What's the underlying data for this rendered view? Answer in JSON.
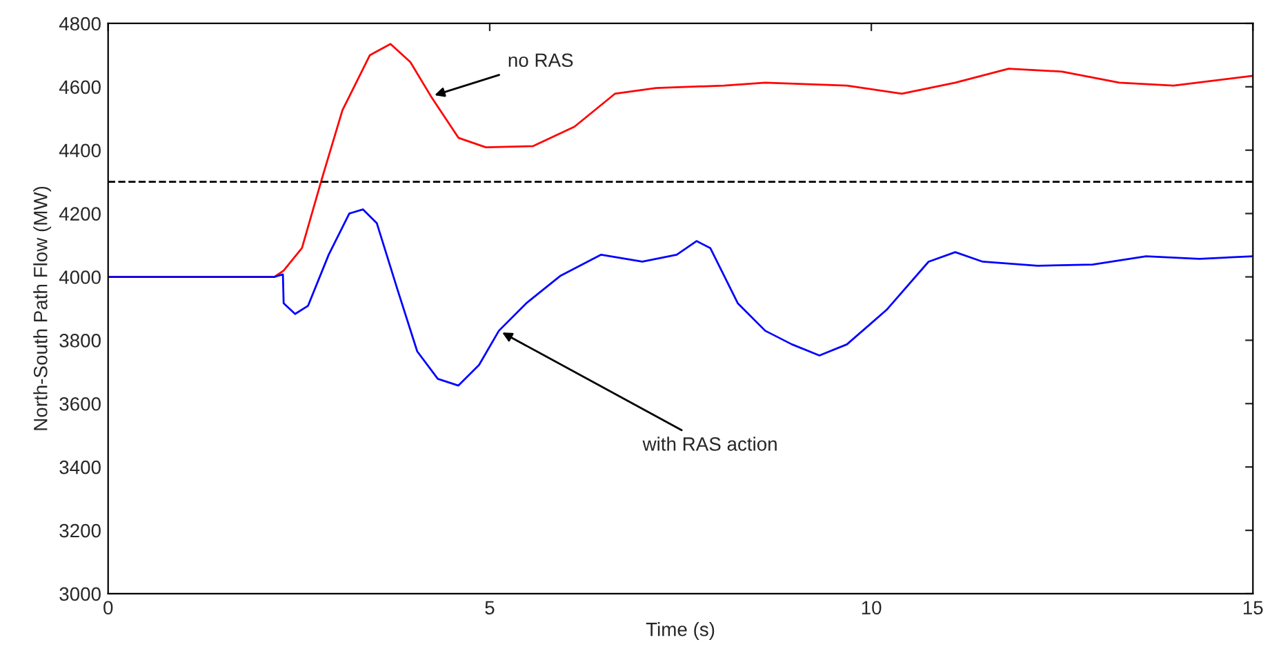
{
  "chart_data": {
    "type": "line",
    "xlabel": "Time (s)",
    "ylabel": "North-South Path Flow (MW)",
    "xlim": [
      0,
      15
    ],
    "xticks": [
      0,
      5,
      10,
      15
    ],
    "ylim": [
      3000,
      4800
    ],
    "yticks": [
      3000,
      3200,
      3400,
      3600,
      3800,
      4000,
      4200,
      4400,
      4600,
      4800
    ],
    "grid": false,
    "legend": false,
    "marker": "none",
    "line_style": "solid",
    "series": [
      {
        "color": "#ff0000",
        "x": [
          0,
          2.18,
          2.3,
          2.54,
          2.8,
          3.07,
          3.43,
          3.7,
          3.96,
          4.23,
          4.59,
          4.95,
          5.57,
          6.11,
          6.64,
          7.18,
          8.07,
          8.61,
          9.68,
          10.4,
          11.1,
          11.8,
          12.5,
          13.25,
          13.96,
          15
        ],
        "values": [
          4000,
          4000,
          4020,
          4091,
          4309,
          4526,
          4700,
          4735,
          4678,
          4570,
          4439,
          4409,
          4413,
          4474,
          4578,
          4596,
          4604,
          4613,
          4604,
          4578,
          4613,
          4657,
          4648,
          4613,
          4604,
          4635
        ]
      },
      {
        "color": "#0000ff",
        "x": [
          0,
          2.18,
          2.29,
          2.3,
          2.45,
          2.62,
          2.89,
          3.16,
          3.34,
          3.52,
          3.79,
          4.05,
          4.32,
          4.59,
          4.86,
          5.12,
          5.48,
          5.93,
          6.46,
          7.0,
          7.45,
          7.71,
          7.89,
          8.25,
          8.61,
          8.96,
          9.32,
          9.68,
          10.2,
          10.75,
          11.1,
          11.46,
          12.18,
          12.9,
          13.6,
          14.3,
          15
        ],
        "values": [
          4000,
          4000,
          4008,
          3917,
          3883,
          3909,
          4070,
          4200,
          4213,
          4170,
          3961,
          3765,
          3678,
          3657,
          3722,
          3830,
          3917,
          4004,
          4070,
          4048,
          4070,
          4113,
          4091,
          3917,
          3830,
          3787,
          3752,
          3787,
          3896,
          4048,
          4078,
          4048,
          4035,
          4039,
          4065,
          4057,
          4065
        ]
      }
    ],
    "ref_lines": [
      {
        "axis": "y",
        "value": 4300,
        "color": "#000000",
        "line_style": "dashed"
      }
    ],
    "annotations": [
      {
        "text": "no RAS",
        "x": 4.23,
        "y": 4570
      },
      {
        "text": "with RAS action",
        "x": 5.12,
        "y": 3830
      }
    ]
  }
}
